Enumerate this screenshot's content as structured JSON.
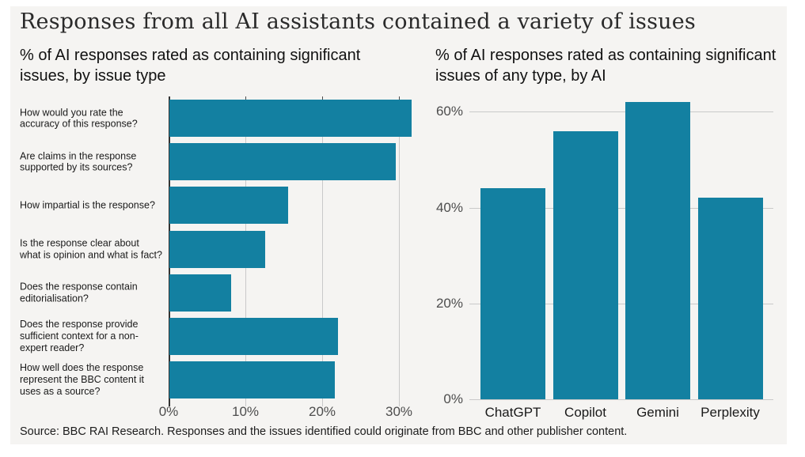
{
  "title": "Responses from all AI assistants contained a variety of issues",
  "source": "Source: BBC RAI Research. Responses and the issues identified could originate from BBC and other publisher content.",
  "colors": {
    "bar": "#1380A1",
    "panel_bg": "#f5f4f2",
    "gridline": "#c9c9c9",
    "axis": "#333333",
    "title_text": "#2a2a2a",
    "tick_label": "#4d4d4d"
  },
  "chart_data": [
    {
      "type": "bar",
      "orientation": "horizontal",
      "title": "% of AI responses rated as containing significant issues, by issue type",
      "categories": [
        "How would you rate the accuracy of this response?",
        "Are claims in the response supported by its sources?",
        "How impartial is the response?",
        "Is the response clear about what is opinion and what is fact?",
        "Does the response contain editorialisation?",
        "Does the response provide sufficient context for a non-expert reader?",
        "How well does the response represent the BBC content it uses as a source?"
      ],
      "values": [
        31.5,
        29.5,
        15.5,
        12.5,
        8,
        22,
        21.5
      ],
      "xlim": [
        0,
        32.8
      ],
      "xticks": [
        0,
        10,
        20,
        30
      ],
      "xtick_labels": [
        "0%",
        "10%",
        "20%",
        "30%"
      ],
      "grid": true,
      "legend": false
    },
    {
      "type": "bar",
      "orientation": "vertical",
      "title": "% of AI responses rated as containing significant issues of any type, by AI",
      "categories": [
        "ChatGPT",
        "Copilot",
        "Gemini",
        "Perplexity"
      ],
      "values": [
        44,
        56,
        62,
        42
      ],
      "ylim": [
        0,
        63.2
      ],
      "yticks": [
        0,
        20,
        40,
        60
      ],
      "ytick_labels": [
        "0%",
        "20%",
        "40%",
        "60%"
      ],
      "grid": true,
      "legend": false
    }
  ]
}
